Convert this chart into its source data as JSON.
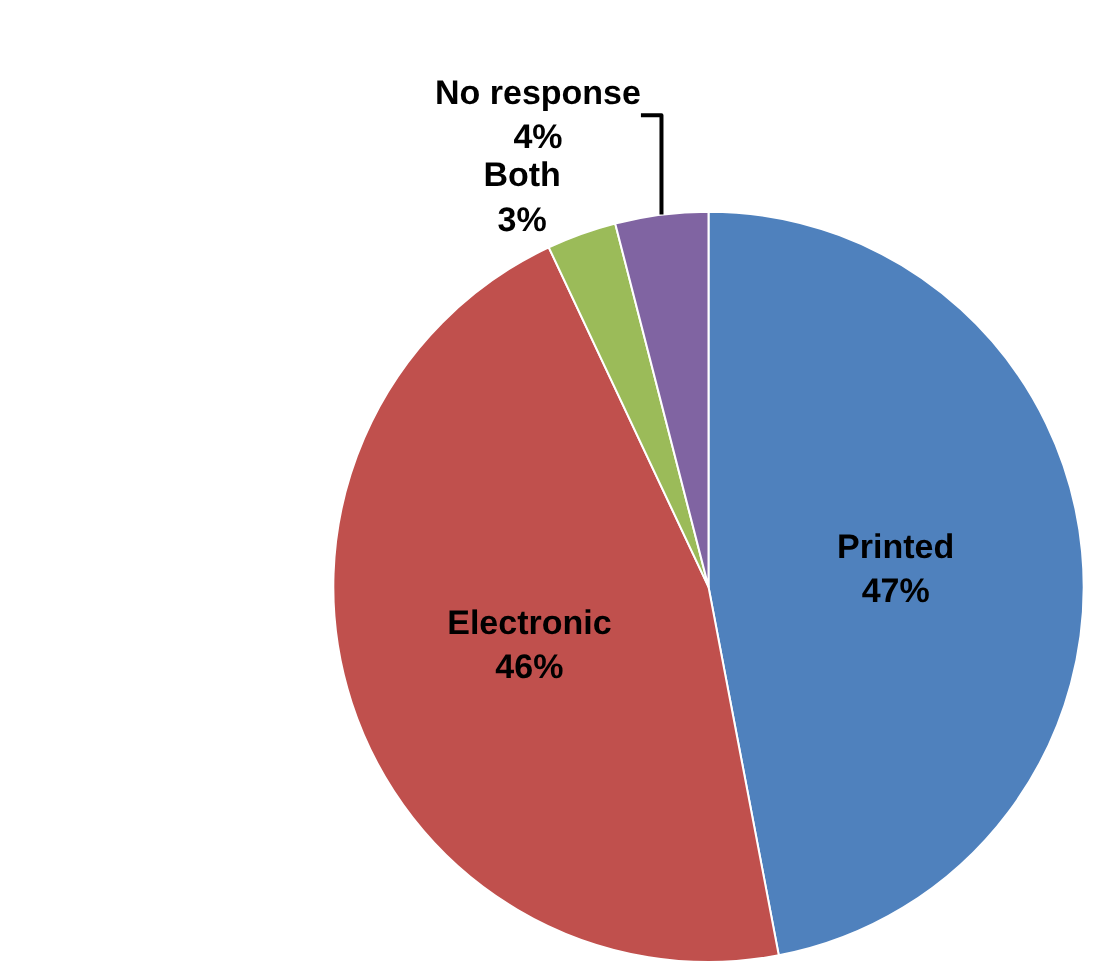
{
  "chart_data": {
    "type": "pie",
    "categories": [
      "Printed",
      "Electronic",
      "Both",
      "No response"
    ],
    "values": [
      47,
      46,
      3,
      4
    ],
    "value_labels": [
      "47%",
      "46%",
      "3%",
      "4%"
    ],
    "colors": [
      "#4f81bd",
      "#c0504d",
      "#9bbb59",
      "#8064a2"
    ],
    "legend": false
  }
}
